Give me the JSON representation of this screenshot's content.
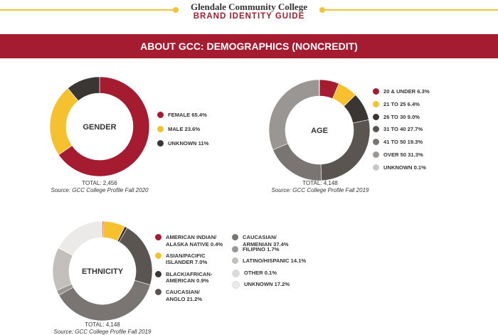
{
  "header": {
    "college": "Glendale Community College",
    "guide": "BRAND IDENTITY GUIDE",
    "accent": "#f3c13a",
    "brand": "#a51c30"
  },
  "banner": {
    "title_main": "ABOUT GCC: DEMOGRAPHICS ",
    "title_tail": "(NONCREDIT)"
  },
  "chart_data": [
    {
      "type": "pie",
      "title": "GENDER",
      "donut": true,
      "slices": [
        {
          "label": "FEMALE",
          "value": 65.4,
          "display": "FEMALE 65.4%",
          "color": "#a51c30"
        },
        {
          "label": "MALE",
          "value": 23.6,
          "display": "MALE 23.6%",
          "color": "#f6c12f"
        },
        {
          "label": "UNKNOWN",
          "value": 11,
          "display": "UNKNOWN 11%",
          "color": "#3a3633"
        }
      ],
      "total": "TOTAL: 2,456",
      "source": "Source: GCC College Profile Fall 2020"
    },
    {
      "type": "pie",
      "title": "AGE",
      "donut": true,
      "slices": [
        {
          "label": "20 & UNDER",
          "value": 6.3,
          "display": "20 & UNDER 6.3%",
          "color": "#a51c30"
        },
        {
          "label": "21 TO 25",
          "value": 6.4,
          "display": "21 TO 25 6.4%",
          "color": "#f6c12f"
        },
        {
          "label": "26 TO 30",
          "value": 9.0,
          "display": "26 TO 30 9.0%",
          "color": "#3a3633"
        },
        {
          "label": "31 TO 40",
          "value": 27.7,
          "display": "31 TO 40 27.7%",
          "color": "#5b5551"
        },
        {
          "label": "41 TO 50",
          "value": 19.3,
          "display": "41 TO 50 19.3%",
          "color": "#7a7572"
        },
        {
          "label": "OVER 50",
          "value": 31.3,
          "display": "OVER 50 31.3%",
          "color": "#9a9693"
        },
        {
          "label": "UNKNOWN",
          "value": 0.1,
          "display": "UNKNOWN 0.1%",
          "color": "#c9c7c5"
        }
      ],
      "total": "TOTAL: 4,148",
      "source": "Source: GCC College Profile Fall 2019"
    },
    {
      "type": "pie",
      "title": "ETHNICITY",
      "donut": true,
      "slices": [
        {
          "label": "AMERICAN INDIAN/ ALASKA NATIVE",
          "value": 0.4,
          "lines": [
            "AMERICAN INDIAN/",
            "ALASKA NATIVE 0.4%"
          ],
          "color": "#a51c30"
        },
        {
          "label": "ASIAN/PACIFIC ISLANDER",
          "value": 7.0,
          "lines": [
            "ASIAN/PACIFIC",
            "ISLANDER 7.0%"
          ],
          "color": "#f6c12f"
        },
        {
          "label": "BLACK/AFRICAN-AMERICAN",
          "value": 0.9,
          "lines": [
            "BLACK/AFRICAN-",
            "AMERICAN 0.9%"
          ],
          "color": "#3a3633"
        },
        {
          "label": "CAUCASIAN/ ANGLO",
          "value": 21.2,
          "lines": [
            "CAUCASIAN/",
            "ANGLO 21.2%"
          ],
          "color": "#5b5551"
        },
        {
          "label": "CAUCASIAN/ ARMENIAN",
          "value": 37.4,
          "lines": [
            "CAUCASIAN/",
            "ARMENIAN 37.4%"
          ],
          "color": "#7a7572"
        },
        {
          "label": "FILIPINO",
          "value": 1.7,
          "lines": [
            "FILIPINO 1.7%"
          ],
          "color": "#9a9693"
        },
        {
          "label": "LATINO/HISPANIC",
          "value": 14.1,
          "lines": [
            "LATINO/HISPANIC 14.1%"
          ],
          "color": "#c2bfbd"
        },
        {
          "label": "OTHER",
          "value": 0.1,
          "lines": [
            "OTHER 0.1%"
          ],
          "color": "#dcdad8"
        },
        {
          "label": "UNKNOWN",
          "value": 17.2,
          "lines": [
            "UNKNOWN 17.2%"
          ],
          "color": "#ebeae9"
        }
      ],
      "total": "TOTAL: 4,148",
      "source": "Source: GCC College Profile Fall 2019"
    }
  ]
}
